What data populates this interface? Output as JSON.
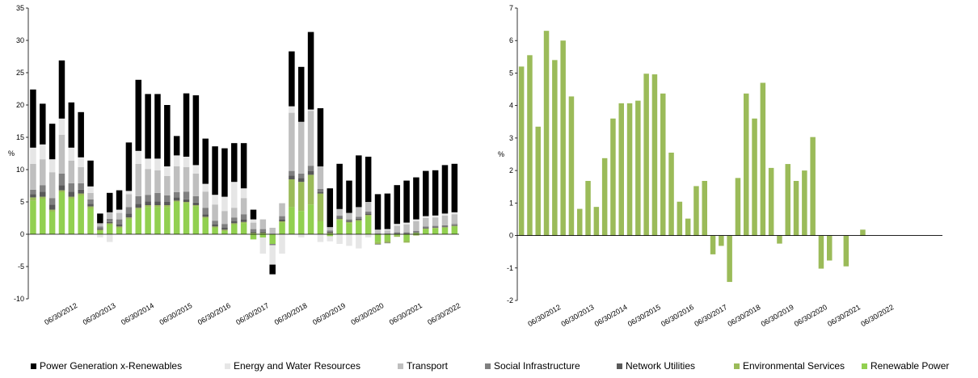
{
  "chart_data": [
    {
      "type": "bar",
      "stacked": true,
      "ylabel": "%",
      "ylim": [
        -10,
        35
      ],
      "yticks": [
        -10,
        -5,
        0,
        5,
        10,
        15,
        20,
        25,
        30,
        35
      ],
      "grid": false,
      "xtick_labels": [
        "06/30/2012",
        "06/30/2013",
        "06/30/2014",
        "06/30/2015",
        "06/30/2016",
        "06/30/2017",
        "06/30/2018",
        "06/30/2019",
        "06/30/2020",
        "06/30/2021",
        "06/30/2022"
      ],
      "categories": [
        "2011-Q2",
        "2011-Q3",
        "2011-Q4",
        "2012-Q1",
        "2012-Q2",
        "2012-Q3",
        "2012-Q4",
        "2013-Q1",
        "2013-Q2",
        "2013-Q3",
        "2013-Q4",
        "2014-Q1",
        "2014-Q2",
        "2014-Q3",
        "2014-Q4",
        "2015-Q1",
        "2015-Q2",
        "2015-Q3",
        "2015-Q4",
        "2016-Q1",
        "2016-Q2",
        "2016-Q3",
        "2016-Q4",
        "2017-Q1",
        "2017-Q2",
        "2017-Q3",
        "2017-Q4",
        "2018-Q1",
        "2018-Q2",
        "2018-Q3",
        "2018-Q4",
        "2019-Q1",
        "2019-Q2",
        "2019-Q3",
        "2019-Q4",
        "2020-Q1",
        "2020-Q2",
        "2020-Q3",
        "2020-Q4",
        "2021-Q1",
        "2021-Q2",
        "2021-Q3",
        "2021-Q4",
        "2022-Q1",
        "2022-Q2"
      ],
      "series": [
        {
          "name": "Renewable Power",
          "color": "#92d050",
          "values": [
            5.2,
            5.5,
            3.5,
            6.5,
            5.5,
            6.0,
            4.0,
            0.5,
            1.5,
            1.0,
            2.3,
            3.8,
            4.2,
            4.2,
            4.2,
            5.0,
            4.8,
            4.3,
            2.5,
            1.0,
            0.5,
            1.5,
            1.7,
            -0.8,
            -0.5,
            -1.5,
            1.8,
            4.2,
            3.6,
            4.6,
            2.0,
            -0.3,
            2.2,
            1.7,
            2.0,
            2.8,
            -1.2,
            -1.0,
            -0.2,
            -1.0,
            0.2,
            0.8,
            0.9,
            1.0,
            1.2
          ]
        },
        {
          "name": "Environmental Services",
          "color": "#9bbb59",
          "values": [
            0.5,
            0.3,
            0.3,
            0.3,
            0.3,
            0.3,
            0.3,
            0.2,
            0.2,
            0.2,
            0.3,
            0.3,
            0.3,
            0.3,
            0.3,
            0.2,
            0.2,
            0.2,
            0.2,
            0.2,
            0.2,
            0.2,
            0.2,
            0.2,
            0.2,
            0.0,
            0.2,
            4.3,
            4.5,
            4.6,
            4.3,
            0.2,
            0.2,
            0.2,
            0.2,
            0.2,
            -0.3,
            -0.3,
            -0.2,
            -0.3,
            -0.2,
            0.1,
            0.1,
            0.1,
            0.1
          ]
        },
        {
          "name": "Network Utilities",
          "color": "#595959",
          "values": [
            0.5,
            0.8,
            0.8,
            0.8,
            0.8,
            0.6,
            0.4,
            0.2,
            0.2,
            0.3,
            0.6,
            0.6,
            0.6,
            0.6,
            0.5,
            0.5,
            0.4,
            0.4,
            0.4,
            0.3,
            0.3,
            0.3,
            0.4,
            0.2,
            0.2,
            0.0,
            0.3,
            0.6,
            0.6,
            0.6,
            0.2,
            0.2,
            0.2,
            0.2,
            0.2,
            0.2,
            0.1,
            0.1,
            0.1,
            0.1,
            0.1,
            0.1,
            0.1,
            0.1,
            0.1
          ]
        },
        {
          "name": "Social Infrastructure",
          "color": "#808080",
          "values": [
            0.7,
            1.0,
            1.0,
            1.8,
            1.3,
            1.0,
            0.7,
            0.3,
            0.5,
            0.8,
            1.0,
            1.2,
            1.0,
            1.3,
            1.0,
            0.8,
            1.2,
            1.0,
            1.0,
            0.6,
            0.6,
            0.6,
            0.8,
            0.4,
            0.4,
            -0.2,
            0.5,
            0.7,
            0.7,
            0.8,
            0.5,
            0.2,
            0.3,
            0.2,
            0.3,
            0.3,
            -0.1,
            -0.1,
            0.2,
            0.2,
            0.2,
            0.2,
            0.2,
            0.2,
            0.2
          ]
        },
        {
          "name": "Transport",
          "color": "#bfbfbf",
          "values": [
            4.0,
            4.0,
            4.0,
            6.0,
            3.5,
            2.5,
            1.0,
            0.5,
            1.0,
            1.0,
            2.0,
            5.0,
            4.0,
            3.5,
            3.0,
            4.0,
            3.8,
            3.5,
            2.5,
            2.5,
            2.0,
            1.5,
            2.5,
            1.0,
            1.5,
            1.0,
            2.0,
            9.0,
            8.0,
            8.5,
            3.5,
            0.5,
            1.0,
            1.0,
            1.5,
            1.5,
            0.5,
            0.5,
            1.0,
            1.2,
            1.5,
            1.3,
            1.3,
            1.5,
            1.5
          ]
        },
        {
          "name": "Energy and Water Resources",
          "color": "#e6e6e6",
          "values": [
            2.5,
            2.3,
            2.0,
            2.5,
            2.0,
            1.5,
            1.0,
            -0.5,
            -1.2,
            0.5,
            0.5,
            2.0,
            1.6,
            1.8,
            1.5,
            1.7,
            1.6,
            1.3,
            1.2,
            1.5,
            2.2,
            4.0,
            1.5,
            0.5,
            -2.5,
            -3.0,
            -3.0,
            1.0,
            -0.5,
            0.2,
            -1.2,
            -0.8,
            -1.5,
            -1.8,
            -2.2,
            -0.5,
            0.1,
            0.2,
            0.3,
            0.3,
            0.3,
            0.3,
            0.3,
            0.3,
            0.3
          ]
        },
        {
          "name": "Power Generation x-Renewables",
          "color": "#000000",
          "values": [
            9.0,
            6.3,
            5.5,
            9.0,
            7.0,
            7.0,
            4.0,
            1.5,
            3.0,
            3.0,
            7.5,
            11.0,
            10.0,
            10.0,
            9.5,
            3.0,
            9.8,
            10.8,
            7.0,
            7.5,
            7.5,
            6.0,
            7.0,
            1.5,
            0.0,
            -1.5,
            0.0,
            8.5,
            8.5,
            12.0,
            9.0,
            6.0,
            7.0,
            5.0,
            8.0,
            7.0,
            5.5,
            5.5,
            6.0,
            6.5,
            6.5,
            7.0,
            7.0,
            7.5,
            7.5
          ]
        }
      ]
    },
    {
      "type": "bar",
      "ylabel": "%",
      "ylim": [
        -2,
        7
      ],
      "yticks": [
        -2,
        -1,
        0,
        1,
        2,
        3,
        4,
        5,
        6,
        7
      ],
      "grid": false,
      "xtick_labels": [
        "06/30/2012",
        "06/30/2013",
        "06/30/2014",
        "06/30/2015",
        "06/30/2016",
        "06/30/2017",
        "06/30/2018",
        "06/30/2019",
        "06/30/2020",
        "06/30/2021",
        "06/30/2022"
      ],
      "categories": [
        "2011-Q2",
        "2011-Q3",
        "2011-Q4",
        "2012-Q1",
        "2012-Q2",
        "2012-Q3",
        "2012-Q4",
        "2013-Q1",
        "2013-Q2",
        "2013-Q3",
        "2013-Q4",
        "2014-Q1",
        "2014-Q2",
        "2014-Q3",
        "2014-Q4",
        "2015-Q1",
        "2015-Q2",
        "2015-Q3",
        "2015-Q4",
        "2016-Q1",
        "2016-Q2",
        "2016-Q3",
        "2016-Q4",
        "2017-Q1",
        "2017-Q2",
        "2017-Q3",
        "2017-Q4",
        "2018-Q1",
        "2018-Q2",
        "2018-Q3",
        "2018-Q4",
        "2019-Q1",
        "2019-Q2",
        "2019-Q3",
        "2019-Q4",
        "2020-Q1",
        "2020-Q2",
        "2020-Q3",
        "2020-Q4",
        "2021-Q1",
        "2021-Q2",
        "2021-Q3",
        "2021-Q4",
        "2022-Q1",
        "2022-Q2"
      ],
      "series": [
        {
          "name": "Environmental Services",
          "color": "#9bbb59",
          "values": [
            5.2,
            5.55,
            3.35,
            6.3,
            5.4,
            6.0,
            4.28,
            0.82,
            1.68,
            0.88,
            2.38,
            3.6,
            4.07,
            4.07,
            4.15,
            4.98,
            4.96,
            4.37,
            2.55,
            1.04,
            0.52,
            1.52,
            1.68,
            -0.58,
            -0.32,
            -1.43,
            1.77,
            4.37,
            3.6,
            4.7,
            2.08,
            -0.25,
            2.2,
            1.68,
            2.0,
            3.03,
            -1.02,
            -0.77,
            0.0,
            -0.95,
            0.0,
            0.18,
            0.0,
            0.0,
            0.0
          ]
        }
      ]
    }
  ],
  "legend": [
    {
      "label": "Power Generation x-Renewables",
      "color": "#000000"
    },
    {
      "label": "Energy and Water Resources",
      "color": "#e6e6e6"
    },
    {
      "label": "Transport",
      "color": "#bfbfbf"
    },
    {
      "label": "Social Infrastructure",
      "color": "#808080"
    },
    {
      "label": "Network Utilities",
      "color": "#595959"
    },
    {
      "label": "Environmental Services",
      "color": "#9bbb59"
    },
    {
      "label": "Renewable Power",
      "color": "#92d050"
    }
  ]
}
